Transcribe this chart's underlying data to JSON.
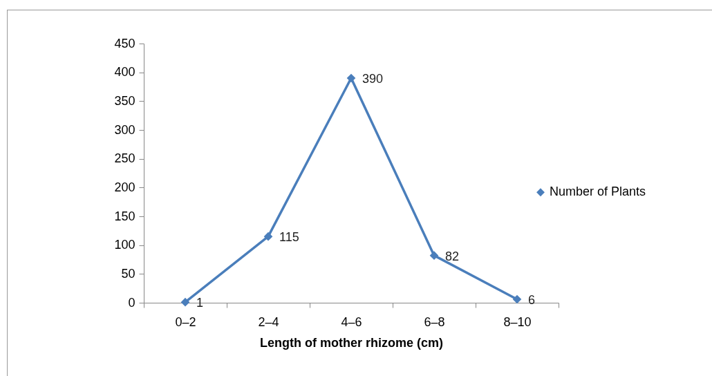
{
  "chart_data": {
    "type": "line",
    "xlabel": "Length of mother rhizome (cm)",
    "categories": [
      "0–2",
      "2–4",
      "4–6",
      "6–8",
      "8–10"
    ],
    "series": [
      {
        "name": "Number of Plants",
        "color": "#4a7ebb",
        "values": [
          1,
          115,
          390,
          82,
          6
        ]
      }
    ],
    "ylim": [
      0,
      450
    ],
    "yticks": [
      0,
      50,
      100,
      150,
      200,
      250,
      300,
      350,
      400,
      450
    ],
    "data_labels": true,
    "marker": "diamond",
    "legend": "right",
    "grid": false
  }
}
